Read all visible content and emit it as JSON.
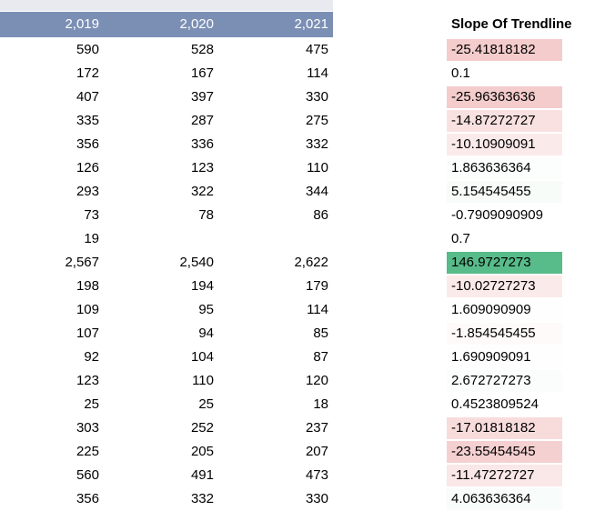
{
  "header": {
    "years": [
      "2,019",
      "2,020",
      "2,021"
    ],
    "slope_title": "Slope Of Trendline"
  },
  "rows": [
    {
      "a": "590",
      "b": "528",
      "c": "475",
      "slope": "-25.41818182",
      "bg": "#f4cccc"
    },
    {
      "a": "172",
      "b": "167",
      "c": "114",
      "slope": "0.1",
      "bg": "#ffffff"
    },
    {
      "a": "407",
      "b": "397",
      "c": "330",
      "slope": "-25.96363636",
      "bg": "#f4cccc"
    },
    {
      "a": "335",
      "b": "287",
      "c": "275",
      "slope": "-14.87272727",
      "bg": "#f9e1e1"
    },
    {
      "a": "356",
      "b": "336",
      "c": "332",
      "slope": "-10.10909091",
      "bg": "#fbeaea"
    },
    {
      "a": "126",
      "b": "123",
      "c": "110",
      "slope": "1.863636364",
      "bg": "#fcfefd"
    },
    {
      "a": "293",
      "b": "322",
      "c": "344",
      "slope": "5.154545455",
      "bg": "#f7fcf9"
    },
    {
      "a": "73",
      "b": "78",
      "c": "86",
      "slope": "-0.7909090909",
      "bg": "#ffffff"
    },
    {
      "a": "19",
      "b": "",
      "c": "",
      "slope": "0.7",
      "bg": "#ffffff"
    },
    {
      "a": "2,567",
      "b": "2,540",
      "c": "2,622",
      "slope": "146.9727273",
      "bg": "#57bb8a"
    },
    {
      "a": "198",
      "b": "194",
      "c": "179",
      "slope": "-10.02727273",
      "bg": "#fbeaea"
    },
    {
      "a": "109",
      "b": "95",
      "c": "114",
      "slope": "1.609090909",
      "bg": "#fdfefd"
    },
    {
      "a": "107",
      "b": "94",
      "c": "85",
      "slope": "-1.854545455",
      "bg": "#fefafa"
    },
    {
      "a": "92",
      "b": "104",
      "c": "87",
      "slope": "1.690909091",
      "bg": "#fdfefd"
    },
    {
      "a": "123",
      "b": "110",
      "c": "120",
      "slope": "2.672727273",
      "bg": "#fbfdfc"
    },
    {
      "a": "25",
      "b": "25",
      "c": "18",
      "slope": "0.4523809524",
      "bg": "#ffffff"
    },
    {
      "a": "303",
      "b": "252",
      "c": "237",
      "slope": "-17.01818182",
      "bg": "#f8dcdc"
    },
    {
      "a": "225",
      "b": "205",
      "c": "207",
      "slope": "-23.55454545",
      "bg": "#f5d0d0"
    },
    {
      "a": "560",
      "b": "491",
      "c": "473",
      "slope": "-11.47272727",
      "bg": "#fae7e7"
    },
    {
      "a": "356",
      "b": "332",
      "c": "330",
      "slope": "4.063636364",
      "bg": "#f8fcfa"
    }
  ]
}
